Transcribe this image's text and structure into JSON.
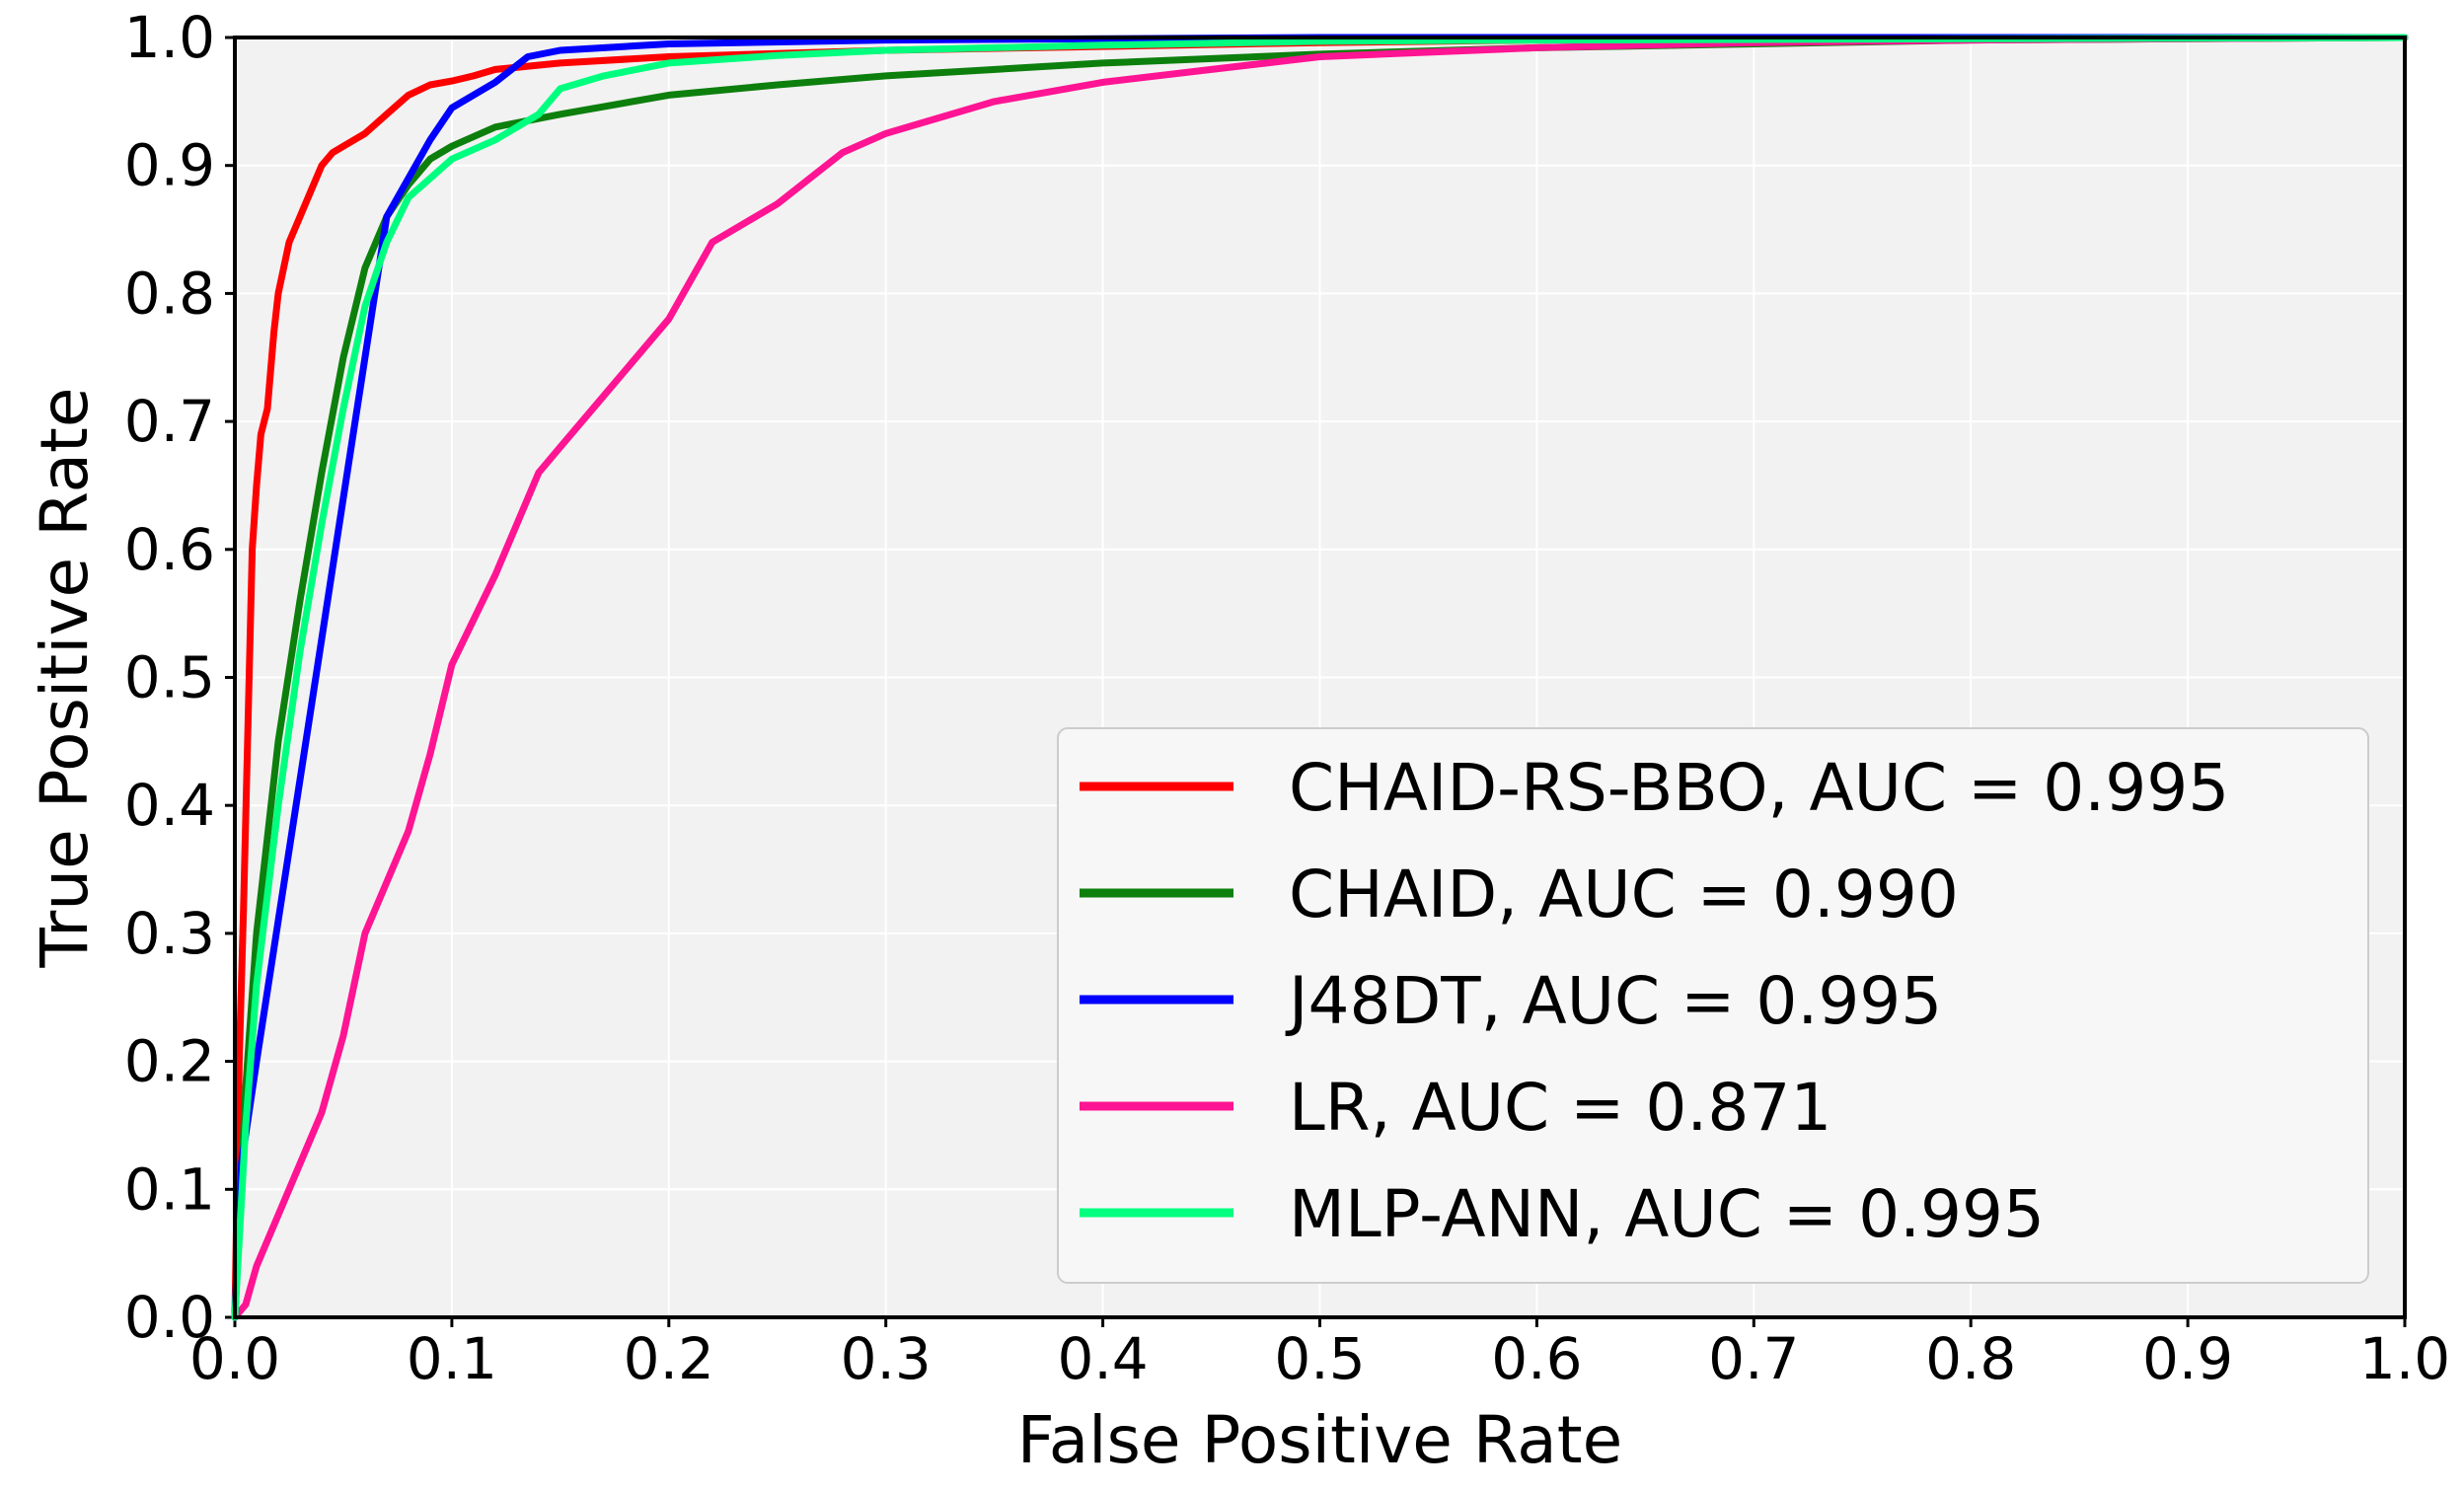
{
  "chart_data": {
    "type": "line",
    "title": "",
    "xlabel": "False Positive Rate",
    "ylabel": "True Positive Rate",
    "xlim": [
      0.0,
      1.0
    ],
    "ylim": [
      0.0,
      1.0
    ],
    "xticks": [
      "0.0",
      "0.1",
      "0.2",
      "0.3",
      "0.4",
      "0.5",
      "0.6",
      "0.7",
      "0.8",
      "0.9",
      "1.0"
    ],
    "yticks": [
      "0.0",
      "0.1",
      "0.2",
      "0.3",
      "0.4",
      "0.5",
      "0.6",
      "0.7",
      "0.8",
      "0.9",
      "1.0"
    ],
    "grid": true,
    "legend_position": "lower-right",
    "background_color": "#f2f2f2",
    "grid_color": "#ffffff",
    "series": [
      {
        "name": "CHAID-RS-BBO",
        "label": "CHAID-RS-BBO, AUC = 0.995",
        "auc": 0.995,
        "color": "#ff0000",
        "x": [
          0.0,
          0.002,
          0.004,
          0.006,
          0.008,
          0.01,
          0.012,
          0.015,
          0.018,
          0.02,
          0.025,
          0.03,
          0.035,
          0.04,
          0.045,
          0.05,
          0.06,
          0.07,
          0.08,
          0.09,
          0.1,
          0.11,
          0.12,
          0.15,
          0.2,
          0.3,
          0.4,
          0.5,
          0.6,
          0.7,
          0.8,
          0.9,
          1.0
        ],
        "y": [
          0.0,
          0.2,
          0.32,
          0.46,
          0.6,
          0.65,
          0.69,
          0.71,
          0.77,
          0.8,
          0.84,
          0.86,
          0.88,
          0.9,
          0.91,
          0.915,
          0.925,
          0.94,
          0.955,
          0.963,
          0.966,
          0.97,
          0.975,
          0.98,
          0.985,
          0.99,
          0.993,
          0.996,
          0.998,
          0.999,
          1.0,
          1.0,
          1.0
        ]
      },
      {
        "name": "CHAID",
        "label": "CHAID, AUC = 0.990",
        "auc": 0.99,
        "color": "#0d7f0d",
        "x": [
          0.0,
          0.005,
          0.01,
          0.02,
          0.03,
          0.04,
          0.05,
          0.06,
          0.07,
          0.08,
          0.09,
          0.1,
          0.12,
          0.15,
          0.2,
          0.25,
          0.3,
          0.4,
          0.5,
          0.6,
          0.7,
          0.8,
          0.9,
          1.0
        ],
        "y": [
          0.0,
          0.18,
          0.3,
          0.45,
          0.56,
          0.66,
          0.75,
          0.82,
          0.86,
          0.885,
          0.905,
          0.915,
          0.93,
          0.94,
          0.955,
          0.963,
          0.97,
          0.98,
          0.987,
          0.992,
          0.995,
          0.998,
          0.999,
          1.0
        ]
      },
      {
        "name": "J48DT",
        "label": "J48DT, AUC = 0.995",
        "auc": 0.995,
        "color": "#0000ff",
        "x": [
          0.0,
          0.003,
          0.01,
          0.02,
          0.03,
          0.04,
          0.05,
          0.06,
          0.07,
          0.08,
          0.09,
          0.1,
          0.12,
          0.135,
          0.15,
          0.2,
          0.3,
          0.4,
          0.5,
          0.6,
          0.8,
          1.0
        ],
        "y": [
          0.0,
          0.12,
          0.2,
          0.31,
          0.42,
          0.53,
          0.64,
          0.75,
          0.86,
          0.89,
          0.92,
          0.945,
          0.965,
          0.985,
          0.99,
          0.995,
          0.998,
          0.999,
          1.0,
          1.0,
          1.0,
          1.0
        ]
      },
      {
        "name": "LR",
        "label": "LR, AUC = 0.871",
        "auc": 0.871,
        "color": "#ff1493",
        "x": [
          0.0,
          0.005,
          0.01,
          0.02,
          0.03,
          0.04,
          0.05,
          0.06,
          0.07,
          0.08,
          0.09,
          0.1,
          0.12,
          0.14,
          0.15,
          0.17,
          0.18,
          0.2,
          0.21,
          0.22,
          0.25,
          0.28,
          0.3,
          0.35,
          0.4,
          0.45,
          0.5,
          0.6,
          0.7,
          0.8,
          0.9,
          1.0
        ],
        "y": [
          0.0,
          0.01,
          0.04,
          0.08,
          0.12,
          0.16,
          0.22,
          0.3,
          0.34,
          0.38,
          0.44,
          0.51,
          0.58,
          0.66,
          0.68,
          0.72,
          0.74,
          0.78,
          0.81,
          0.84,
          0.87,
          0.91,
          0.925,
          0.95,
          0.965,
          0.975,
          0.985,
          0.992,
          0.996,
          0.998,
          0.999,
          1.0
        ]
      },
      {
        "name": "MLP-ANN",
        "label": "MLP-ANN, AUC = 0.995",
        "auc": 0.995,
        "color": "#00ff7f",
        "x": [
          0.0,
          0.005,
          0.01,
          0.02,
          0.03,
          0.04,
          0.05,
          0.06,
          0.07,
          0.08,
          0.09,
          0.1,
          0.12,
          0.14,
          0.15,
          0.17,
          0.2,
          0.25,
          0.3,
          0.4,
          0.5,
          0.6,
          0.8,
          1.0
        ],
        "y": [
          0.0,
          0.15,
          0.26,
          0.4,
          0.52,
          0.62,
          0.71,
          0.79,
          0.84,
          0.875,
          0.89,
          0.905,
          0.92,
          0.94,
          0.96,
          0.97,
          0.98,
          0.986,
          0.99,
          0.994,
          0.997,
          0.998,
          0.999,
          1.0
        ]
      }
    ]
  }
}
